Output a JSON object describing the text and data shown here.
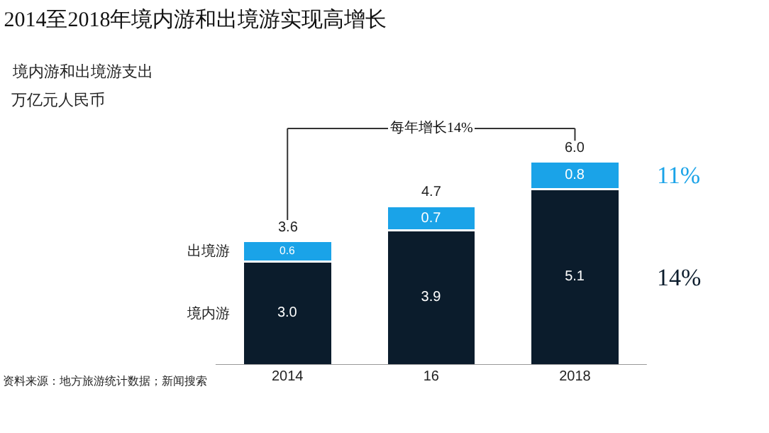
{
  "chart_data": {
    "type": "bar",
    "title": "2014至2018年境内游和出境游实现高增长",
    "subtitle": "境内游和出境游支出",
    "categories": [
      "2014",
      "16",
      "2018"
    ],
    "stacked": true,
    "data_labels": true,
    "legend": false,
    "series": [
      {
        "name": "境内游",
        "color": "#0b1c2c",
        "values": [
          3.0,
          3.9,
          5.1
        ],
        "value_labels": [
          "3.0",
          "3.9",
          "5.1"
        ]
      },
      {
        "name": "出境游",
        "color": "#1aa3e8",
        "values": [
          0.6,
          0.7,
          0.8
        ],
        "value_labels": [
          "0.6",
          "0.7",
          "0.8"
        ]
      }
    ],
    "totals": [
      "3.6",
      "4.7",
      "6.0"
    ],
    "annotations": [
      "万亿元人民币",
      "每年增长14%",
      "11%",
      "14%",
      "资料来源：地方旅游统计数据；新闻搜索"
    ]
  }
}
